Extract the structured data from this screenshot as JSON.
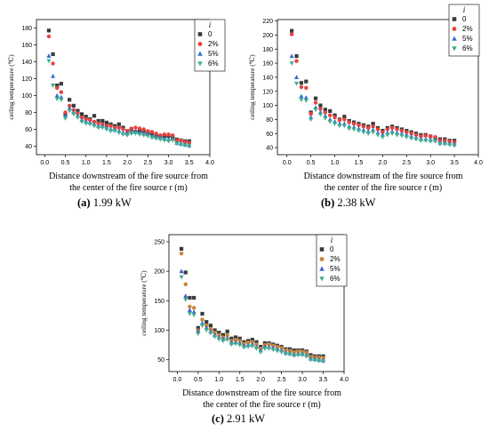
{
  "legend_title": "i",
  "chart_data": [
    {
      "type": "scatter",
      "caption_letter": "(a)",
      "caption_text": " 1.99 kW",
      "xlabel_line1": "Distance downstream of the fire source from",
      "xlabel_line2": "the center of the fire source r (m)",
      "ylabel": "ceiling temperature (℃)",
      "xlim": [
        -0.2,
        4.0
      ],
      "ylim": [
        30,
        190
      ],
      "xticks": [
        "0.0",
        "0.5",
        "1.0",
        "1.5",
        "2.0",
        "2.5",
        "3.0",
        "3.5",
        "4.0"
      ],
      "yticks": [
        "40",
        "60",
        "80",
        "100",
        "120",
        "140",
        "160",
        "180"
      ],
      "x": [
        0.1,
        0.2,
        0.3,
        0.4,
        0.5,
        0.6,
        0.7,
        0.8,
        0.9,
        1.0,
        1.1,
        1.2,
        1.3,
        1.4,
        1.5,
        1.6,
        1.7,
        1.8,
        1.9,
        2.0,
        2.1,
        2.2,
        2.3,
        2.4,
        2.5,
        2.6,
        2.7,
        2.8,
        2.9,
        3.0,
        3.1,
        3.2,
        3.3,
        3.4,
        3.5
      ],
      "series": [
        {
          "name": "0",
          "marker": "square",
          "color": "#3a3a3a",
          "values": [
            177,
            149,
            112,
            114,
            78,
            95,
            88,
            82,
            78,
            75,
            72,
            76,
            70,
            70,
            68,
            66,
            64,
            66,
            62,
            58,
            60,
            57,
            58,
            58,
            55,
            55,
            53,
            52,
            52,
            52,
            50,
            48,
            47,
            46,
            46
          ]
        },
        {
          "name": "2%",
          "marker": "circle",
          "color": "#e8413d",
          "values": [
            170,
            138,
            109,
            104,
            80,
            88,
            83,
            79,
            74,
            72,
            71,
            69,
            67,
            66,
            64,
            64,
            62,
            62,
            60,
            58,
            61,
            62,
            61,
            60,
            58,
            57,
            55,
            53,
            54,
            54,
            53,
            47,
            47,
            45,
            44
          ]
        },
        {
          "name": "5%",
          "marker": "triangle",
          "color": "#2e6fd1",
          "values": [
            147,
            123,
            100,
            98,
            76,
            85,
            80,
            76,
            71,
            69,
            68,
            66,
            64,
            64,
            62,
            60,
            60,
            58,
            56,
            55,
            57,
            57,
            56,
            55,
            54,
            52,
            51,
            50,
            49,
            48,
            49,
            44,
            43,
            42,
            41
          ]
        },
        {
          "name": "6%",
          "marker": "triangle-down",
          "color": "#3fae8c",
          "values": [
            141,
            112,
            96,
            95,
            73,
            82,
            78,
            74,
            69,
            67,
            66,
            64,
            62,
            62,
            60,
            58,
            58,
            56,
            54,
            53,
            55,
            55,
            54,
            53,
            52,
            50,
            49,
            48,
            47,
            46,
            47,
            43,
            42,
            41,
            40
          ]
        }
      ]
    },
    {
      "type": "scatter",
      "caption_letter": "(b)",
      "caption_text": " 2.38 kW",
      "xlabel_line1": "Distance downstream of the fire source from",
      "xlabel_line2": "the center of the fire source r (m)",
      "ylabel": "ceiling temperature (℃)",
      "xlim": [
        -0.2,
        4.0
      ],
      "ylim": [
        30,
        222
      ],
      "xticks": [
        "0.0",
        "0.5",
        "1.0",
        "1.5",
        "2.0",
        "2.5",
        "3.0",
        "3.5",
        "4.0"
      ],
      "yticks": [
        "40",
        "60",
        "80",
        "100",
        "120",
        "140",
        "160",
        "180",
        "200",
        "220"
      ],
      "x": [
        0.1,
        0.2,
        0.3,
        0.4,
        0.5,
        0.6,
        0.7,
        0.8,
        0.9,
        1.0,
        1.1,
        1.2,
        1.3,
        1.4,
        1.5,
        1.6,
        1.7,
        1.8,
        1.9,
        2.0,
        2.1,
        2.2,
        2.3,
        2.4,
        2.5,
        2.6,
        2.7,
        2.8,
        2.9,
        3.0,
        3.1,
        3.2,
        3.3,
        3.4,
        3.5
      ],
      "series": [
        {
          "name": "0",
          "marker": "square",
          "color": "#3a3a3a",
          "values": [
            206,
            170,
            132,
            134,
            90,
            110,
            100,
            94,
            92,
            86,
            80,
            84,
            78,
            76,
            74,
            72,
            70,
            74,
            68,
            64,
            68,
            70,
            68,
            66,
            64,
            62,
            60,
            58,
            58,
            56,
            54,
            52,
            52,
            50,
            50
          ]
        },
        {
          "name": "2%",
          "marker": "circle",
          "color": "#e8413d",
          "values": [
            201,
            163,
            126,
            125,
            88,
            104,
            95,
            90,
            86,
            83,
            79,
            80,
            76,
            74,
            72,
            70,
            68,
            70,
            66,
            62,
            66,
            68,
            66,
            64,
            62,
            60,
            58,
            56,
            57,
            56,
            55,
            50,
            50,
            49,
            48
          ]
        },
        {
          "name": "5%",
          "marker": "triangle",
          "color": "#2e6fd1",
          "values": [
            170,
            140,
            113,
            111,
            83,
            97,
            90,
            85,
            80,
            77,
            74,
            74,
            70,
            69,
            67,
            65,
            63,
            65,
            61,
            58,
            61,
            63,
            61,
            60,
            58,
            56,
            54,
            52,
            52,
            51,
            51,
            47,
            47,
            46,
            45
          ]
        },
        {
          "name": "6%",
          "marker": "triangle-down",
          "color": "#3fae8c",
          "values": [
            160,
            131,
            108,
            107,
            80,
            94,
            87,
            82,
            77,
            74,
            71,
            71,
            67,
            66,
            64,
            62,
            60,
            62,
            58,
            55,
            58,
            60,
            58,
            57,
            55,
            53,
            52,
            50,
            50,
            49,
            49,
            45,
            45,
            44,
            43
          ]
        }
      ]
    },
    {
      "type": "scatter",
      "caption_letter": "(c)",
      "caption_text": " 2.91 kW",
      "xlabel_line1": "Distance downstream of the fire source from",
      "xlabel_line2": "the center of the fire source r (m)",
      "ylabel": "ceiling temperature (℃)",
      "xlim": [
        -0.2,
        4.0
      ],
      "ylim": [
        30,
        262
      ],
      "xticks": [
        "0.0",
        "0.5",
        "1.0",
        "1.5",
        "2.0",
        "2.5",
        "3.0",
        "3.5",
        "4.0"
      ],
      "yticks": [
        "50",
        "100",
        "150",
        "200",
        "250"
      ],
      "x": [
        0.1,
        0.2,
        0.3,
        0.4,
        0.5,
        0.6,
        0.7,
        0.8,
        0.9,
        1.0,
        1.1,
        1.2,
        1.3,
        1.4,
        1.5,
        1.6,
        1.7,
        1.8,
        1.9,
        2.0,
        2.1,
        2.2,
        2.3,
        2.4,
        2.5,
        2.6,
        2.7,
        2.8,
        2.9,
        3.0,
        3.1,
        3.2,
        3.3,
        3.4,
        3.5
      ],
      "series": [
        {
          "name": "0",
          "marker": "square",
          "color": "#3a3a3a",
          "values": [
            238,
            198,
            155,
            155,
            104,
            128,
            114,
            108,
            100,
            96,
            92,
            98,
            86,
            88,
            86,
            80,
            82,
            84,
            80,
            72,
            78,
            78,
            76,
            74,
            72,
            68,
            68,
            66,
            66,
            66,
            64,
            58,
            56,
            56,
            56
          ]
        },
        {
          "name": "2%",
          "marker": "circle",
          "color": "#c9843a",
          "values": [
            230,
            178,
            140,
            138,
            100,
            118,
            108,
            102,
            96,
            92,
            88,
            92,
            82,
            84,
            82,
            77,
            79,
            80,
            76,
            69,
            75,
            76,
            74,
            72,
            70,
            66,
            65,
            63,
            64,
            64,
            62,
            55,
            54,
            54,
            53
          ]
        },
        {
          "name": "5%",
          "marker": "triangle",
          "color": "#3a5fd1",
          "values": [
            200,
            158,
            134,
            131,
            98,
            112,
            104,
            98,
            92,
            88,
            85,
            87,
            79,
            80,
            78,
            74,
            75,
            76,
            72,
            66,
            72,
            72,
            70,
            68,
            66,
            62,
            61,
            59,
            60,
            60,
            58,
            52,
            51,
            50,
            49
          ]
        },
        {
          "name": "6%",
          "marker": "triangle-down",
          "color": "#3fae8c",
          "values": [
            190,
            152,
            128,
            126,
            94,
            108,
            100,
            95,
            89,
            85,
            82,
            84,
            76,
            77,
            75,
            71,
            72,
            73,
            69,
            63,
            69,
            69,
            67,
            65,
            63,
            60,
            59,
            57,
            58,
            58,
            56,
            50,
            49,
            48,
            47
          ]
        }
      ]
    }
  ]
}
